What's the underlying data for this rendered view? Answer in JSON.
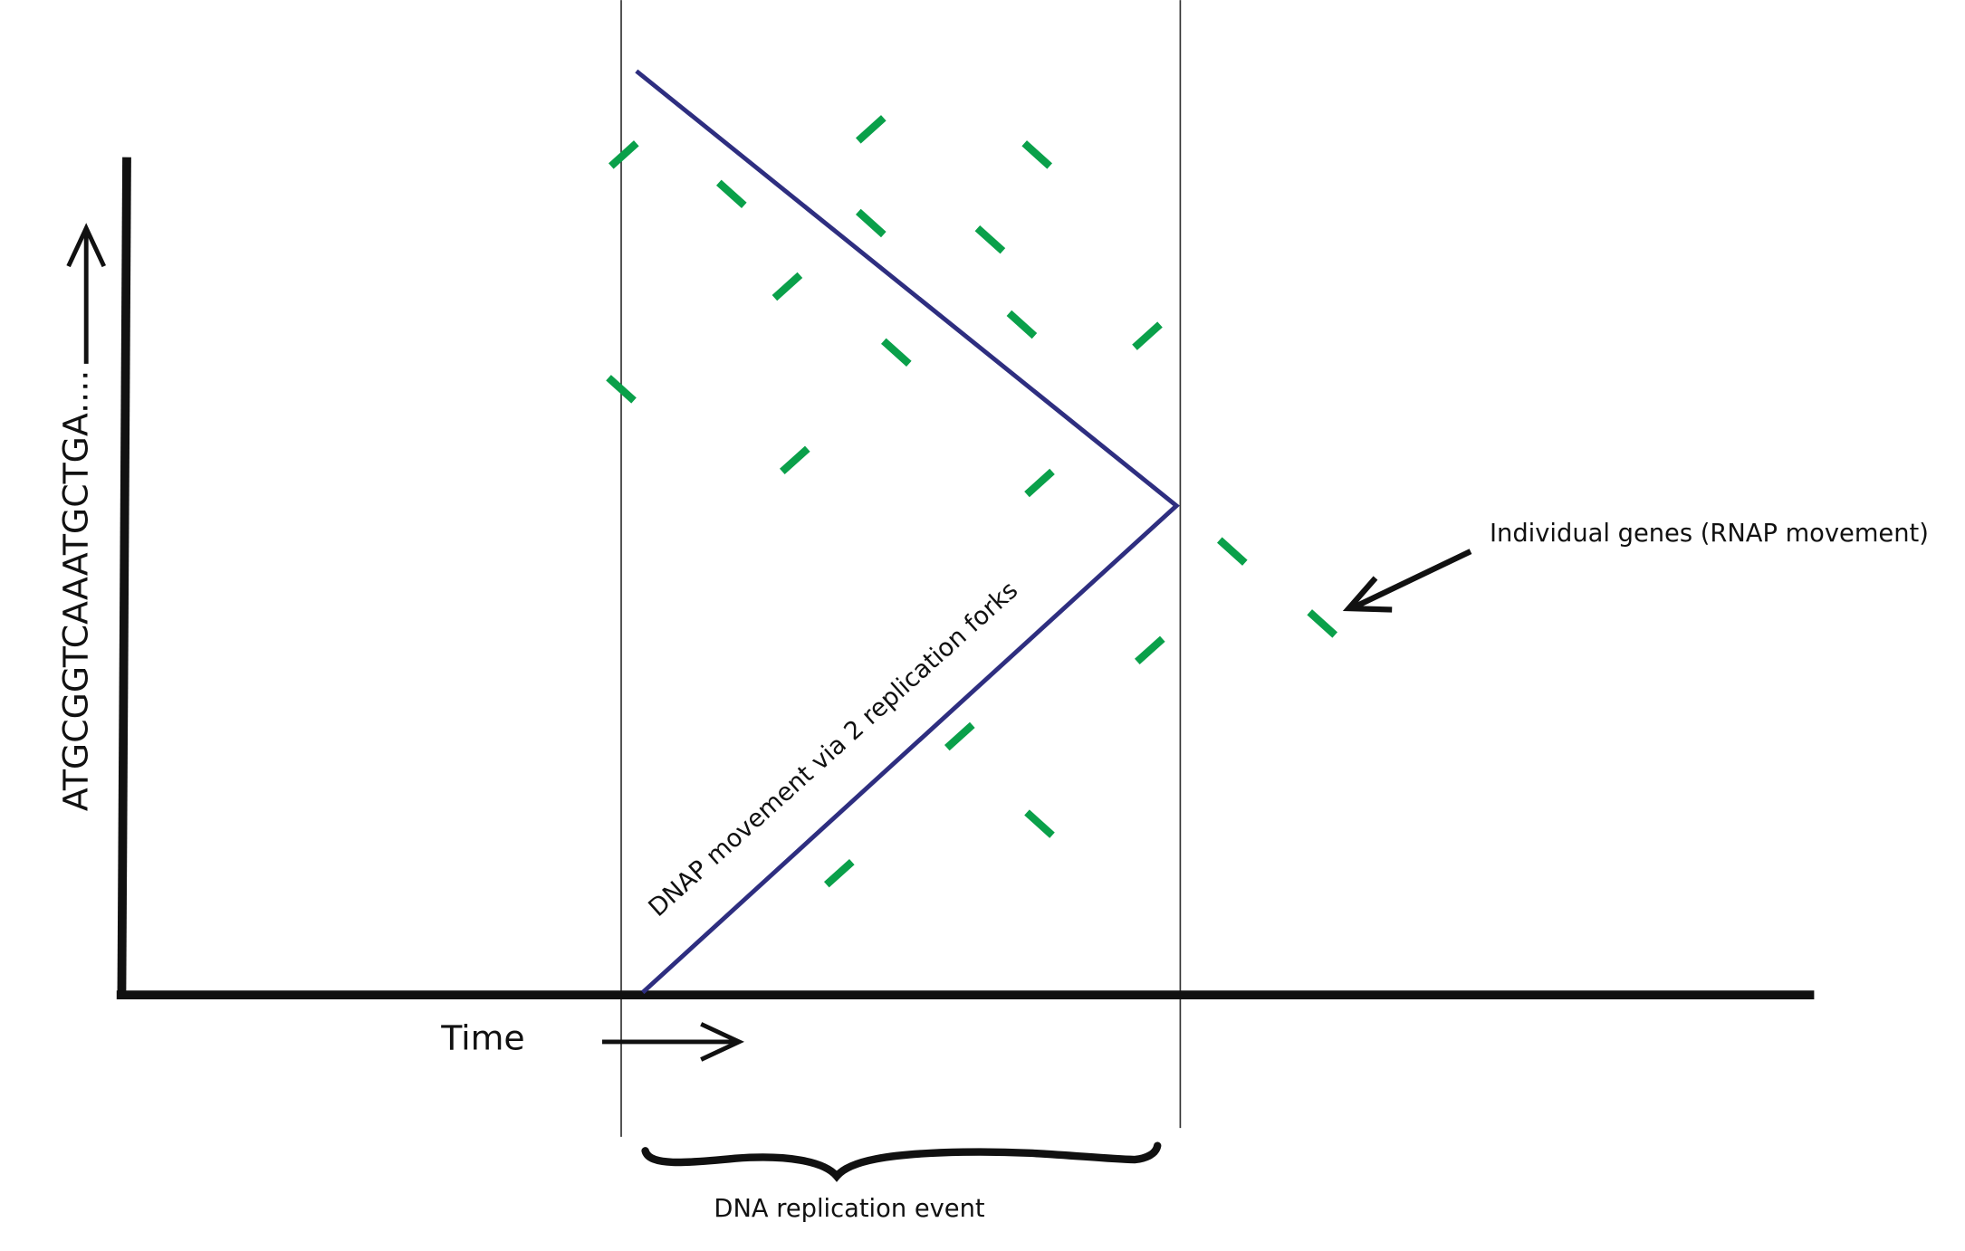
{
  "diagram": {
    "y_axis_label": "ATGCGGTCAAATGCTGA....",
    "x_axis_label": "Time",
    "fork_label": "DNAP movement via 2 replication forks",
    "genes_label": "Individual genes (RNAP movement)",
    "event_label": "DNA replication event",
    "colors": {
      "axis": "#111111",
      "fork_line": "#2e2e80",
      "gene_marks": "#0aa04a",
      "boundary_lines": "#333333"
    }
  }
}
